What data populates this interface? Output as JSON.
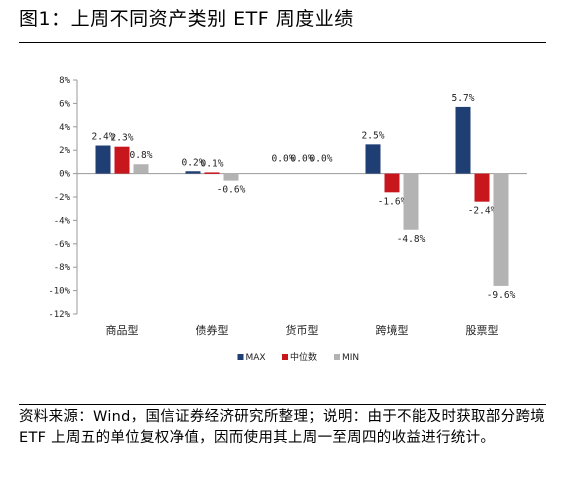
{
  "figure": {
    "title": "图1：上周不同资产类别 ETF 周度业绩",
    "source_note": "资料来源：Wind，国信证券经济研究所整理；说明：由于不能及时获取部分跨境 ETF 上周五的单位复权净值，因而使用其上周一至周四的收益进行统计。"
  },
  "colors": {
    "MAX": "#1f3e73",
    "中位数": "#c8161d",
    "MIN": "#b3b3b3"
  },
  "chart_data": {
    "type": "bar",
    "title": "",
    "xlabel": "",
    "ylabel": "",
    "categories": [
      "商品型",
      "债券型",
      "货币型",
      "跨境型",
      "股票型"
    ],
    "series": [
      {
        "name": "MAX",
        "values": [
          2.4,
          0.2,
          0.0,
          2.5,
          5.7
        ],
        "labels": [
          "2.4%",
          "0.2%",
          "0.0%",
          "2.5%",
          "5.7%"
        ]
      },
      {
        "name": "中位数",
        "values": [
          2.3,
          0.1,
          0.0,
          -1.6,
          -2.4
        ],
        "labels": [
          "2.3%",
          "0.1%",
          "0.0%",
          "-1.6%",
          "-2.4%"
        ]
      },
      {
        "name": "MIN",
        "values": [
          0.8,
          -0.6,
          0.0,
          -4.8,
          -9.6
        ],
        "labels": [
          "0.8%",
          "-0.6%",
          "0.0%",
          "-4.8%",
          "-9.6%"
        ]
      }
    ],
    "ylim": [
      -12,
      8
    ],
    "yticks": [
      8,
      6,
      4,
      2,
      0,
      -2,
      -4,
      -6,
      -8,
      -10,
      -12
    ],
    "ytick_labels": [
      "8%",
      "6%",
      "4%",
      "2%",
      "0%",
      "-2%",
      "-4%",
      "-6%",
      "-8%",
      "-10%",
      "-12%"
    ],
    "grid": false,
    "legend_position": "bottom-center"
  }
}
